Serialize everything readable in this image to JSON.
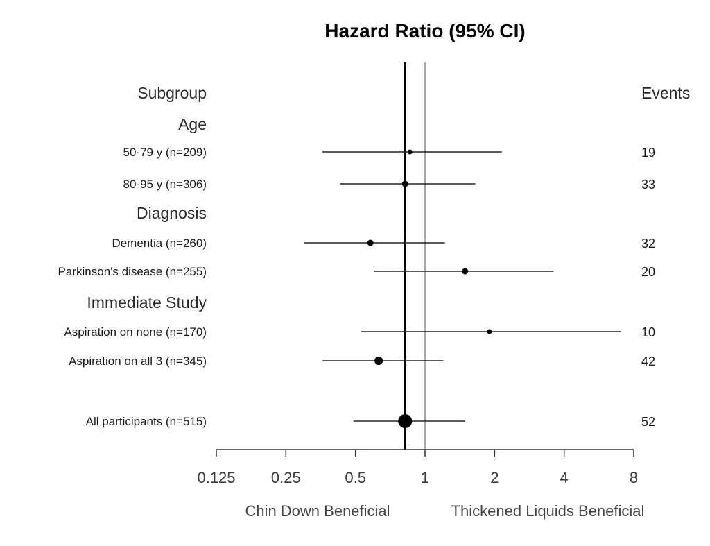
{
  "chart_data": {
    "type": "forest",
    "title": "Hazard Ratio (95% CI)",
    "left_header": "Subgroup",
    "right_header": "Events",
    "x_scale": "log2",
    "xlim": [
      0.125,
      8
    ],
    "x_ticks": [
      0.125,
      0.25,
      0.5,
      1,
      2,
      4,
      8
    ],
    "x_tick_labels": [
      "0.125",
      "0.25",
      "0.5",
      "1",
      "2",
      "4",
      "8"
    ],
    "reference_line": 1,
    "overall_line": 0.82,
    "left_footer": "Chin Down Beneficial",
    "right_footer": "Thickened Liquids Beneficial",
    "rows": [
      {
        "kind": "group",
        "label": "Age"
      },
      {
        "kind": "item",
        "label": "50-79 y (n=209)",
        "hr": 0.86,
        "lo": 0.36,
        "hi": 2.15,
        "events": "19"
      },
      {
        "kind": "item",
        "label": "80-95 y (n=306)",
        "hr": 0.82,
        "lo": 0.43,
        "hi": 1.65,
        "events": "33"
      },
      {
        "kind": "group",
        "label": "Diagnosis"
      },
      {
        "kind": "item",
        "label": "Dementia (n=260)",
        "hr": 0.58,
        "lo": 0.3,
        "hi": 1.22,
        "events": "32"
      },
      {
        "kind": "item",
        "label": "Parkinson's disease (n=255)",
        "hr": 1.49,
        "lo": 0.6,
        "hi": 3.6,
        "events": "20"
      },
      {
        "kind": "group",
        "label": "Immediate Study"
      },
      {
        "kind": "item",
        "label": "Aspiration on none (n=170)",
        "hr": 1.9,
        "lo": 0.53,
        "hi": 7.05,
        "events": "10"
      },
      {
        "kind": "item",
        "label": "Aspiration on all 3 (n=345)",
        "hr": 0.63,
        "lo": 0.36,
        "hi": 1.2,
        "events": "42"
      },
      {
        "kind": "item",
        "label": "All participants (n=515)",
        "hr": 0.82,
        "lo": 0.49,
        "hi": 1.49,
        "events": "52"
      }
    ]
  }
}
